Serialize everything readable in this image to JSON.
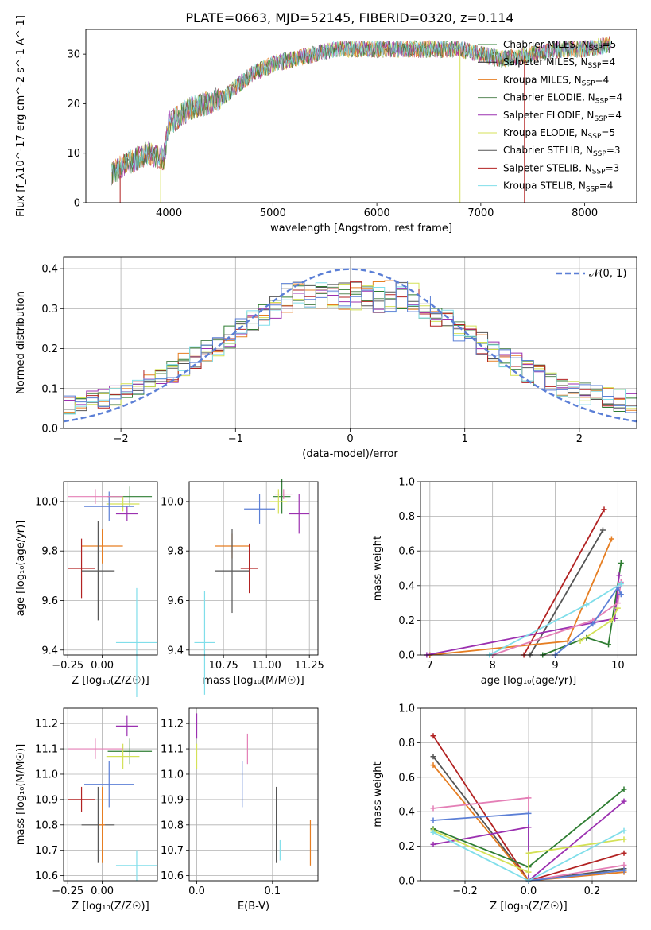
{
  "figure_title": "PLATE=0663, MJD=52145, FIBERID=0320, z=0.114",
  "colors": {
    "Chabrier MILES": "#2e7d32",
    "Salpeter MILES": "#1f1f1f",
    "Kroupa MILES": "#e67e22",
    "Chabrier ELODIE": "#5a8a5a",
    "Salpeter ELODIE": "#9b30b0",
    "Kroupa ELODIE": "#d4e157",
    "Chabrier STELIB": "#555555",
    "Salpeter STELIB": "#b22222",
    "Kroupa STELIB": "#80deea",
    "Blue": "#5b7fd6",
    "Pink": "#e47fb6"
  },
  "chart_data": [
    {
      "type": "line",
      "xlabel": "wavelength [Angstrom, rest frame]",
      "ylabel": "Flux [f_λ10^-17 erg cm^-2 s^-1 A^-1]",
      "xlim": [
        3200,
        8500
      ],
      "ylim": [
        0,
        35
      ],
      "xticks": [
        "4000",
        "5000",
        "6000",
        "7000",
        "8000"
      ],
      "yticks": [
        "0",
        "10",
        "20",
        "30"
      ],
      "legend_position": "right",
      "legend": [
        "Chabrier MILES, N_SSP=5",
        "Salpeter MILES, N_SSP=4",
        "Kroupa MILES, N_SSP=4",
        "Chabrier ELODIE, N_SSP=4",
        "Salpeter ELODIE, N_SSP=4",
        "Kroupa ELODIE, N_SSP=5",
        "Chabrier STELIB, N_SSP=3",
        "Salpeter STELIB, N_SSP=3",
        "Kroupa STELIB, N_SSP=4"
      ],
      "spectrum_anchor": {
        "x": [
          3450,
          3600,
          3800,
          3950,
          4000,
          4200,
          4500,
          4800,
          5000,
          5200,
          5400,
          5600,
          5800,
          6000,
          6200,
          6500,
          6800,
          7000,
          7200,
          7500,
          7800,
          8000,
          8250
        ],
        "y": [
          6,
          8,
          10,
          9,
          16,
          19,
          21,
          26,
          28,
          29,
          30,
          31,
          31,
          31,
          31,
          31,
          31,
          30,
          29,
          30,
          31,
          31,
          32
        ]
      }
    },
    {
      "type": "line",
      "xlabel": "(data-model)/error",
      "ylabel": "Normed distribution",
      "xlim": [
        -2.5,
        2.5
      ],
      "ylim": [
        0,
        0.43
      ],
      "xticks": [
        "−2",
        "−1",
        "0",
        "1",
        "2"
      ],
      "yticks": [
        "0.0",
        "0.1",
        "0.2",
        "0.3",
        "0.4"
      ],
      "legend": [
        "𝒩(0, 1)"
      ]
    },
    {
      "type": "scatter",
      "xlabel": "Z [log₁₀(Z/Z☉)]",
      "ylabel": "age  [log₁₀(age/yr)]",
      "xlim": [
        -0.28,
        0.4
      ],
      "ylim": [
        9.38,
        10.08
      ],
      "xticks": [
        "−0.25",
        "0.00"
      ],
      "yticks": [
        "9.4",
        "9.6",
        "9.8",
        "10.0"
      ],
      "points": [
        {
          "s": "Chabrier MILES",
          "x": 0.2,
          "y": 10.02,
          "xe": 0.16,
          "ye": 0.04
        },
        {
          "s": "Salpeter ELODIE",
          "x": 0.18,
          "y": 9.95,
          "xe": 0.08,
          "ye": 0.03
        },
        {
          "s": "Kroupa ELODIE",
          "x": 0.15,
          "y": 9.99,
          "xe": 0.12,
          "ye": 0.03
        },
        {
          "s": "Blue",
          "x": 0.05,
          "y": 9.98,
          "xe": 0.18,
          "ye": 0.06
        },
        {
          "s": "Pink",
          "x": -0.05,
          "y": 10.02,
          "xe": 0.2,
          "ye": 0.03
        },
        {
          "s": "Kroupa MILES",
          "x": 0.0,
          "y": 9.82,
          "xe": 0.15,
          "ye": 0.07
        },
        {
          "s": "Salpeter STELIB",
          "x": -0.15,
          "y": 9.73,
          "xe": 0.1,
          "ye": 0.12
        },
        {
          "s": "Chabrier STELIB",
          "x": -0.03,
          "y": 9.72,
          "xe": 0.12,
          "ye": 0.2
        },
        {
          "s": "Kroupa STELIB",
          "x": 0.25,
          "y": 9.43,
          "xe": 0.15,
          "ye": 0.22
        }
      ]
    },
    {
      "type": "scatter",
      "xlabel": "mass [log₁₀(M/M☉)]",
      "ylabel": "",
      "xlim": [
        10.55,
        11.3
      ],
      "ylim": [
        9.38,
        10.08
      ],
      "xticks": [
        "10.75",
        "11.00",
        "11.25"
      ],
      "yticks": [
        "9.4",
        "9.6",
        "9.8",
        "10.0"
      ],
      "points": [
        {
          "s": "Salpeter ELODIE",
          "x": 11.19,
          "y": 9.95,
          "xe": 0.06,
          "ye": 0.08
        },
        {
          "s": "Chabrier MILES",
          "x": 11.09,
          "y": 10.02,
          "xe": 0.05,
          "ye": 0.07
        },
        {
          "s": "Kroupa ELODIE",
          "x": 11.07,
          "y": 10.0,
          "xe": 0.05,
          "ye": 0.05
        },
        {
          "s": "Pink",
          "x": 11.1,
          "y": 10.03,
          "xe": 0.05,
          "ye": 0.02
        },
        {
          "s": "Blue",
          "x": 10.96,
          "y": 9.97,
          "xe": 0.09,
          "ye": 0.06
        },
        {
          "s": "Kroupa MILES",
          "x": 10.8,
          "y": 9.82,
          "xe": 0.1,
          "ye": 0.05
        },
        {
          "s": "Salpeter STELIB",
          "x": 10.9,
          "y": 9.73,
          "xe": 0.05,
          "ye": 0.1
        },
        {
          "s": "Chabrier STELIB",
          "x": 10.8,
          "y": 9.72,
          "xe": 0.1,
          "ye": 0.17
        },
        {
          "s": "Kroupa STELIB",
          "x": 10.64,
          "y": 9.43,
          "xe": 0.06,
          "ye": 0.21
        }
      ]
    },
    {
      "type": "line",
      "xlabel": "age  [log₁₀(age/yr)]",
      "ylabel": "mass weight",
      "xlim": [
        6.85,
        10.3
      ],
      "ylim": [
        0,
        1.0
      ],
      "xticks": [
        "7",
        "8",
        "9",
        "10"
      ],
      "yticks": [
        "0.0",
        "0.2",
        "0.4",
        "0.6",
        "0.8",
        "1.0"
      ],
      "series": [
        {
          "s": "Salpeter STELIB",
          "x": [
            8.5,
            9.78
          ],
          "y": [
            0,
            0.84
          ]
        },
        {
          "s": "Chabrier STELIB",
          "x": [
            8.6,
            9.76
          ],
          "y": [
            0,
            0.72
          ]
        },
        {
          "s": "Kroupa MILES",
          "x": [
            7.0,
            9.2,
            9.9
          ],
          "y": [
            0,
            0.08,
            0.67
          ]
        },
        {
          "s": "Chabrier MILES",
          "x": [
            8.8,
            9.5,
            9.85,
            10.05
          ],
          "y": [
            0,
            0.1,
            0.06,
            0.53
          ]
        },
        {
          "s": "Salpeter ELODIE",
          "x": [
            6.95,
            9.95,
            10.02
          ],
          "y": [
            0,
            0.21,
            0.46
          ]
        },
        {
          "s": "Pink",
          "x": [
            8.0,
            9.6,
            10.0,
            10.05
          ],
          "y": [
            0,
            0.2,
            0.3,
            0.42
          ]
        },
        {
          "s": "Blue",
          "x": [
            9.0,
            9.6,
            10.0,
            10.05
          ],
          "y": [
            0,
            0.18,
            0.39,
            0.35
          ]
        },
        {
          "s": "Kroupa STELIB",
          "x": [
            7.95,
            9.5,
            10.05
          ],
          "y": [
            0,
            0.29,
            0.41
          ]
        },
        {
          "s": "Kroupa ELODIE",
          "x": [
            9.4,
            9.9,
            10.0
          ],
          "y": [
            0.08,
            0.2,
            0.27
          ]
        }
      ]
    },
    {
      "type": "scatter",
      "xlabel": "Z [log₁₀(Z/Z☉)]",
      "ylabel": "mass [log₁₀(M/M☉)]",
      "xlim": [
        -0.28,
        0.4
      ],
      "ylim": [
        10.58,
        11.26
      ],
      "xticks": [
        "−0.25",
        "0.00"
      ],
      "yticks": [
        "10.6",
        "10.7",
        "10.8",
        "10.9",
        "11.0",
        "11.1",
        "11.2"
      ],
      "points": [
        {
          "s": "Salpeter ELODIE",
          "x": 0.18,
          "y": 11.19,
          "xe": 0.08,
          "ye": 0.04
        },
        {
          "s": "Chabrier MILES",
          "x": 0.2,
          "y": 11.09,
          "xe": 0.16,
          "ye": 0.05
        },
        {
          "s": "Kroupa ELODIE",
          "x": 0.15,
          "y": 11.07,
          "xe": 0.12,
          "ye": 0.05
        },
        {
          "s": "Pink",
          "x": -0.05,
          "y": 11.1,
          "xe": 0.2,
          "ye": 0.04
        },
        {
          "s": "Blue",
          "x": 0.05,
          "y": 10.96,
          "xe": 0.18,
          "ye": 0.09
        },
        {
          "s": "Salpeter STELIB",
          "x": -0.15,
          "y": 10.9,
          "xe": 0.1,
          "ye": 0.05
        },
        {
          "s": "Chabrier STELIB",
          "x": -0.03,
          "y": 10.8,
          "xe": 0.12,
          "ye": 0.15
        },
        {
          "s": "Kroupa MILES",
          "x": 0.0,
          "y": 10.8,
          "xe": 0.02,
          "ye": 0.15
        },
        {
          "s": "Kroupa STELIB",
          "x": 0.25,
          "y": 10.64,
          "xe": 0.15,
          "ye": 0.06
        }
      ]
    },
    {
      "type": "scatter",
      "xlabel": "E(B-V)",
      "ylabel": "",
      "xlim": [
        -0.01,
        0.16
      ],
      "ylim": [
        10.58,
        11.26
      ],
      "xticks": [
        "0.0",
        "0.1"
      ],
      "yticks": [
        "10.6",
        "10.7",
        "10.8",
        "10.9",
        "11.0",
        "11.1",
        "11.2"
      ],
      "points": [
        {
          "s": "Salpeter ELODIE",
          "x": 0.0,
          "y": 11.19,
          "ye": 0.05
        },
        {
          "s": "Kroupa ELODIE",
          "x": 0.0,
          "y": 11.07,
          "ye": 0.05
        },
        {
          "s": "Pink",
          "x": 0.067,
          "y": 11.1,
          "ye": 0.06
        },
        {
          "s": "Blue",
          "x": 0.06,
          "y": 10.96,
          "ye": 0.09
        },
        {
          "s": "Salpeter STELIB",
          "x": 0.105,
          "y": 10.9,
          "ye": 0.03
        },
        {
          "s": "Chabrier STELIB",
          "x": 0.105,
          "y": 10.8,
          "ye": 0.15
        },
        {
          "s": "Kroupa STELIB",
          "x": 0.11,
          "y": 10.7,
          "ye": 0.04
        },
        {
          "s": "Kroupa MILES",
          "x": 0.15,
          "y": 10.73,
          "ye": 0.09
        }
      ]
    },
    {
      "type": "line",
      "xlabel": "Z [log₁₀(Z/Z☉)]",
      "ylabel": "mass weight",
      "xlim": [
        -0.34,
        0.34
      ],
      "ylim": [
        0,
        1.0
      ],
      "xticks": [
        "−0.2",
        "0.0",
        "0.2"
      ],
      "yticks": [
        "0.0",
        "0.2",
        "0.4",
        "0.6",
        "0.8",
        "1.0"
      ],
      "series": [
        {
          "s": "Salpeter STELIB",
          "x": [
            -0.3,
            0.0,
            0.3
          ],
          "y": [
            0.84,
            0.0,
            0.16
          ]
        },
        {
          "s": "Chabrier STELIB",
          "x": [
            -0.3,
            0.0,
            0.3
          ],
          "y": [
            0.72,
            0.0,
            0.07
          ]
        },
        {
          "s": "Kroupa MILES",
          "x": [
            -0.3,
            0.0,
            0.3
          ],
          "y": [
            0.67,
            0.0,
            0.05
          ]
        },
        {
          "s": "Pink",
          "x": [
            -0.3,
            0.0,
            0.0,
            0.3
          ],
          "y": [
            0.42,
            0.48,
            0.0,
            0.09
          ]
        },
        {
          "s": "Blue",
          "x": [
            -0.3,
            0.0,
            0.0,
            0.3
          ],
          "y": [
            0.35,
            0.39,
            0.0,
            0.06
          ]
        },
        {
          "s": "Salpeter ELODIE",
          "x": [
            -0.3,
            0.0,
            0.0,
            0.3
          ],
          "y": [
            0.21,
            0.31,
            0.0,
            0.46
          ]
        },
        {
          "s": "Chabrier MILES",
          "x": [
            -0.3,
            0.0,
            0.3
          ],
          "y": [
            0.3,
            0.08,
            0.53
          ]
        },
        {
          "s": "Kroupa ELODIE",
          "x": [
            -0.3,
            0.0,
            0.0,
            0.3
          ],
          "y": [
            0.29,
            0.05,
            0.16,
            0.24
          ]
        },
        {
          "s": "Kroupa STELIB",
          "x": [
            -0.3,
            0.0,
            0.3
          ],
          "y": [
            0.28,
            0.0,
            0.29
          ]
        }
      ]
    }
  ]
}
